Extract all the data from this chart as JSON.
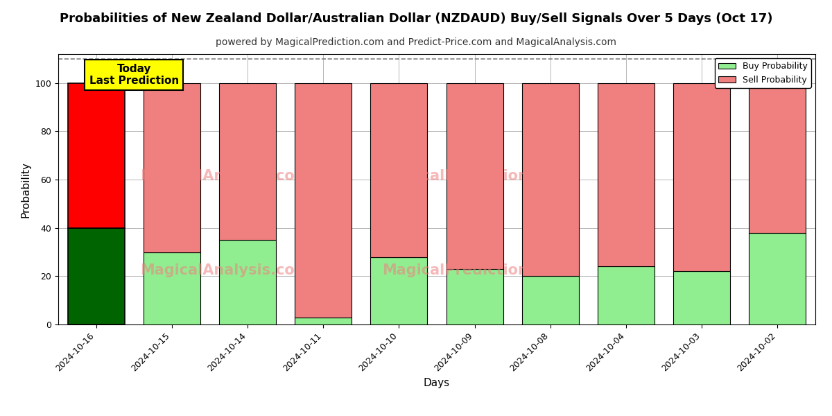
{
  "title": "Probabilities of New Zealand Dollar/Australian Dollar (NZDAUD) Buy/Sell Signals Over 5 Days (Oct 17)",
  "subtitle": "powered by MagicalPrediction.com and Predict-Price.com and MagicalAnalysis.com",
  "xlabel": "Days",
  "ylabel": "Probability",
  "ylim": [
    0,
    112
  ],
  "yticks": [
    0,
    20,
    40,
    60,
    80,
    100
  ],
  "dashed_line_y": 110,
  "categories": [
    "2024-10-16",
    "2024-10-15",
    "2024-10-14",
    "2024-10-11",
    "2024-10-10",
    "2024-10-09",
    "2024-10-08",
    "2024-10-04",
    "2024-10-03",
    "2024-10-02"
  ],
  "buy_values": [
    40,
    30,
    35,
    3,
    28,
    23,
    20,
    24,
    22,
    38
  ],
  "sell_values": [
    60,
    70,
    65,
    97,
    72,
    77,
    80,
    76,
    78,
    62
  ],
  "today_buy_color": "#006400",
  "today_sell_color": "#ff0000",
  "other_buy_color": "#90EE90",
  "other_sell_color": "#F08080",
  "bar_width": 0.75,
  "today_annotation": "Today\nLast Prediction",
  "annotation_bg_color": "#ffff00",
  "legend_buy_label": "Buy Probability",
  "legend_sell_label": "Sell Probability",
  "background_color": "#ffffff",
  "grid_color": "#aaaaaa",
  "title_fontsize": 13,
  "subtitle_fontsize": 10
}
